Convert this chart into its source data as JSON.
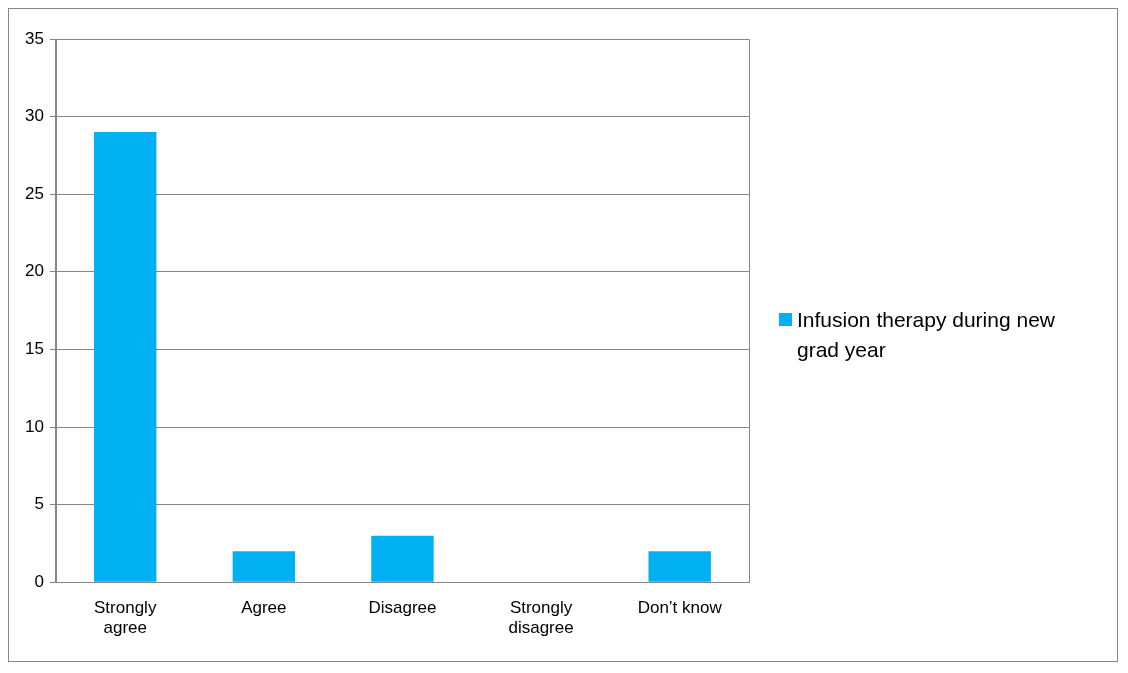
{
  "chart_data": {
    "type": "bar",
    "categories": [
      "Strongly agree",
      "Agree",
      "Disagree",
      "Strongly disagree",
      "Don’t know"
    ],
    "series": [
      {
        "name": "Infusion therapy during new grad year",
        "color": "#00b0f0",
        "values": [
          29,
          2,
          3,
          0,
          2
        ]
      }
    ],
    "ylim": [
      0,
      35
    ],
    "yticks": [
      0,
      5,
      10,
      15,
      20,
      25,
      30,
      35
    ],
    "grid": "y",
    "legend": "right"
  }
}
